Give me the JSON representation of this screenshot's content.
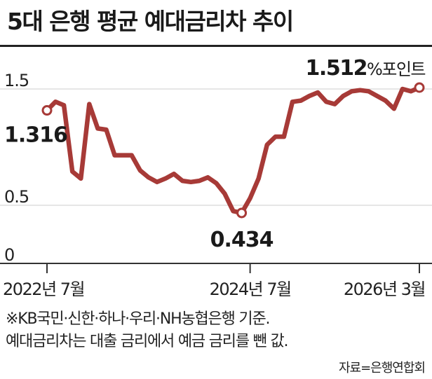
{
  "title": "5대 은행 평균 예대금리차 추이",
  "notes": [
    "※KB국민·신한·하나·우리·NH농협은행 기준.",
    "예대금리차는 대출 금리에서 예금 금리를 뺀 값."
  ],
  "source": "자료=은행연합회",
  "colors": {
    "line": "#a73a37",
    "marker_fill": "#ffffff",
    "text": "#222222",
    "grid": "#d6d6d6"
  },
  "chart_data": {
    "type": "line",
    "title": "5대 은행 평균 예대금리차 추이",
    "xlabel": "",
    "ylabel": "",
    "ylim": [
      0,
      1.5
    ],
    "y_ticks": [
      "1.5",
      "0.5",
      "0"
    ],
    "x_tick_labels": [
      "2022년 7월",
      "2024년 7월",
      "2026년 3월"
    ],
    "x_tick_index": [
      0,
      24,
      44
    ],
    "grid": true,
    "series": [
      {
        "name": "",
        "values": [
          1.316,
          1.39,
          1.36,
          0.79,
          0.73,
          1.37,
          1.16,
          1.15,
          0.93,
          0.93,
          0.93,
          0.8,
          0.74,
          0.7,
          0.73,
          0.77,
          0.71,
          0.7,
          0.71,
          0.74,
          0.69,
          0.6,
          0.45,
          0.434,
          0.56,
          0.73,
          1.02,
          1.09,
          1.09,
          1.39,
          1.4,
          1.44,
          1.47,
          1.39,
          1.37,
          1.44,
          1.48,
          1.49,
          1.48,
          1.44,
          1.4,
          1.33,
          1.5,
          1.48,
          1.512
        ]
      }
    ],
    "labels": {
      "first": "1.316",
      "min": "0.434",
      "last_value": "1.512",
      "last_unit": "%포인트"
    }
  }
}
